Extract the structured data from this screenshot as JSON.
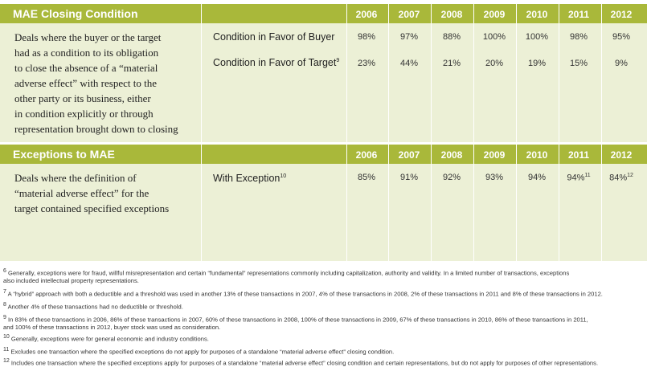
{
  "years": [
    "2006",
    "2007",
    "2008",
    "2009",
    "2010",
    "2011",
    "2012"
  ],
  "mae": {
    "title": "MAE Closing Condition",
    "description_lines": [
      "Deals where the buyer or the target",
      "had as a condition to its obligation",
      "to close the absence of a “material",
      "adverse effect” with respect to the",
      "other party or its business, either",
      "in condition explicitly or through",
      "representation brought down to closing"
    ],
    "rows": [
      {
        "label": "Condition in Favor of Buyer",
        "sup": "",
        "values": [
          "98%",
          "97%",
          "88%",
          "100%",
          "100%",
          "98%",
          "95%"
        ]
      },
      {
        "label": "Condition in Favor of Target",
        "sup": "9",
        "values": [
          "23%",
          "44%",
          "21%",
          "20%",
          "19%",
          "15%",
          "9%"
        ]
      }
    ]
  },
  "exceptions": {
    "title": "Exceptions to MAE",
    "description_lines": [
      "Deals where the definition of",
      "“material adverse effect” for the",
      "target contained specified exceptions"
    ],
    "row": {
      "label": "With Exception",
      "sup": "10",
      "values": [
        "85%",
        "91%",
        "92%",
        "93%",
        "94%",
        "94%",
        "84%"
      ],
      "value_sups": [
        "",
        "",
        "",
        "",
        "",
        "11",
        "12"
      ]
    }
  },
  "footnotes": [
    {
      "num": "6",
      "lines": [
        "Generally, exceptions were for fraud, willful misrepresentation and certain “fundamental” representations commonly including capitalization, authority and validity. In a limited number of transactions, exceptions",
        "also included intellectual property representations."
      ]
    },
    {
      "num": "7",
      "lines": [
        "A “hybrid” approach with both a deductible and a threshold was used in another 13% of these transactions in 2007, 4% of these transactions in 2008, 2% of these transactions in 2011 and 8% of these transactions in 2012."
      ]
    },
    {
      "num": "8",
      "lines": [
        "Another 4% of these transactions had no deductible or threshold."
      ]
    },
    {
      "num": "9",
      "lines": [
        "In 83% of these transactions in 2006, 86% of these transactions in 2007, 60% of these transactions in 2008, 100% of these transactions in 2009, 67% of these transactions in 2010, 86% of these transactions in 2011,",
        "and 100% of these transactions in 2012, buyer stock was used as consideration."
      ]
    },
    {
      "num": "10",
      "lines": [
        "Generally, exceptions were for general economic and industry conditions."
      ]
    },
    {
      "num": "11",
      "lines": [
        "Excludes one transaction where the specified exceptions do not apply for purposes of a standalone “material adverse effect” closing condition."
      ]
    },
    {
      "num": "12",
      "lines": [
        "Includes one transaction where the specified exceptions apply for purposes of a standalone “material adverse effect” closing condition and certain representations, but do not apply for purposes of other representations."
      ]
    }
  ]
}
